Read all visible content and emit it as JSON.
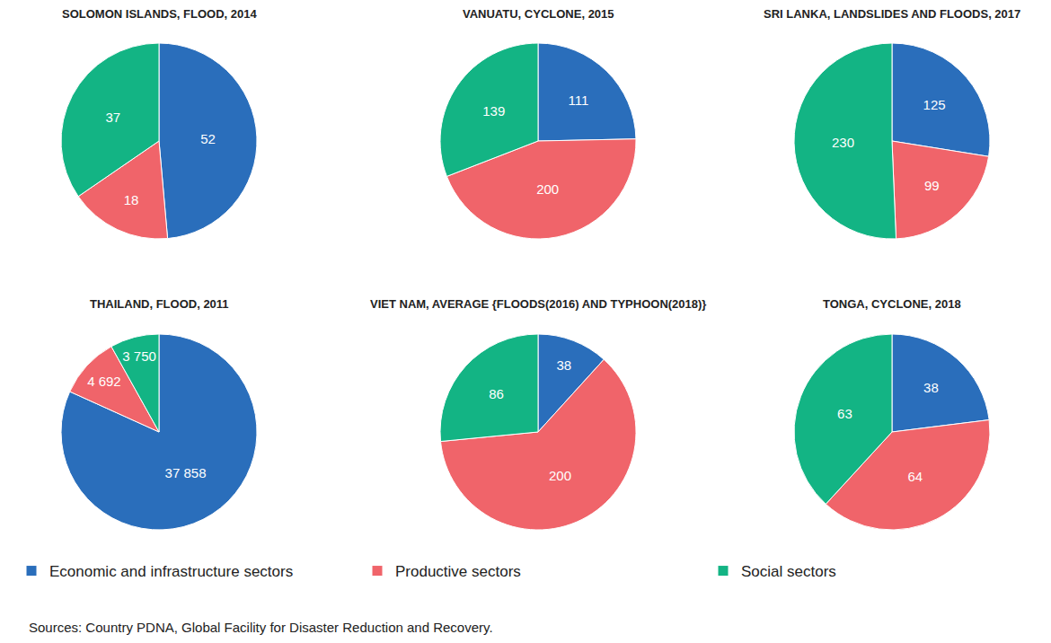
{
  "chart_data": [
    {
      "type": "pie",
      "title": "SOLOMON ISLANDS, FLOOD, 2014",
      "categories": [
        "Economic and infrastructure sectors",
        "Productive sectors",
        "Social sectors"
      ],
      "values": [
        52,
        18,
        37
      ],
      "colors": [
        "#2a6ebb",
        "#f0646a",
        "#13b484"
      ],
      "data_labels": true,
      "legend": "bottom"
    },
    {
      "type": "pie",
      "title": "VANUATU, CYCLONE, 2015",
      "categories": [
        "Economic and infrastructure sectors",
        "Productive sectors",
        "Social sectors"
      ],
      "values": [
        111,
        200,
        139
      ],
      "colors": [
        "#2a6ebb",
        "#f0646a",
        "#13b484"
      ],
      "data_labels": true,
      "legend": "bottom"
    },
    {
      "type": "pie",
      "title": "SRI LANKA, LANDSLIDES AND FLOODS, 2017",
      "categories": [
        "Economic and infrastructure sectors",
        "Productive sectors",
        "Social sectors"
      ],
      "values": [
        125,
        99,
        230
      ],
      "colors": [
        "#2a6ebb",
        "#f0646a",
        "#13b484"
      ],
      "data_labels": true,
      "legend": "bottom"
    },
    {
      "type": "pie",
      "title": "THAILAND, FLOOD, 2011",
      "categories": [
        "Economic and infrastructure sectors",
        "Productive sectors",
        "Social sectors"
      ],
      "values": [
        37858,
        4692,
        3750
      ],
      "value_labels": [
        "37 858",
        "4 692",
        "3 750"
      ],
      "colors": [
        "#2a6ebb",
        "#f0646a",
        "#13b484"
      ],
      "data_labels": true,
      "legend": "bottom"
    },
    {
      "type": "pie",
      "title": "VIET NAM, AVERAGE {FLOODS(2016) AND TYPHOON(2018)}",
      "categories": [
        "Economic and infrastructure sectors",
        "Productive sectors",
        "Social sectors"
      ],
      "values": [
        38,
        200,
        86
      ],
      "colors": [
        "#2a6ebb",
        "#f0646a",
        "#13b484"
      ],
      "data_labels": true,
      "legend": "bottom"
    },
    {
      "type": "pie",
      "title": "TONGA, CYCLONE, 2018",
      "categories": [
        "Economic and infrastructure sectors",
        "Productive sectors",
        "Social sectors"
      ],
      "values": [
        38,
        64,
        63
      ],
      "colors": [
        "#2a6ebb",
        "#f0646a",
        "#13b484"
      ],
      "data_labels": true,
      "legend": "bottom"
    }
  ],
  "source": "Sources: Country PDNA, Global Facility for Disaster Reduction and Recovery."
}
